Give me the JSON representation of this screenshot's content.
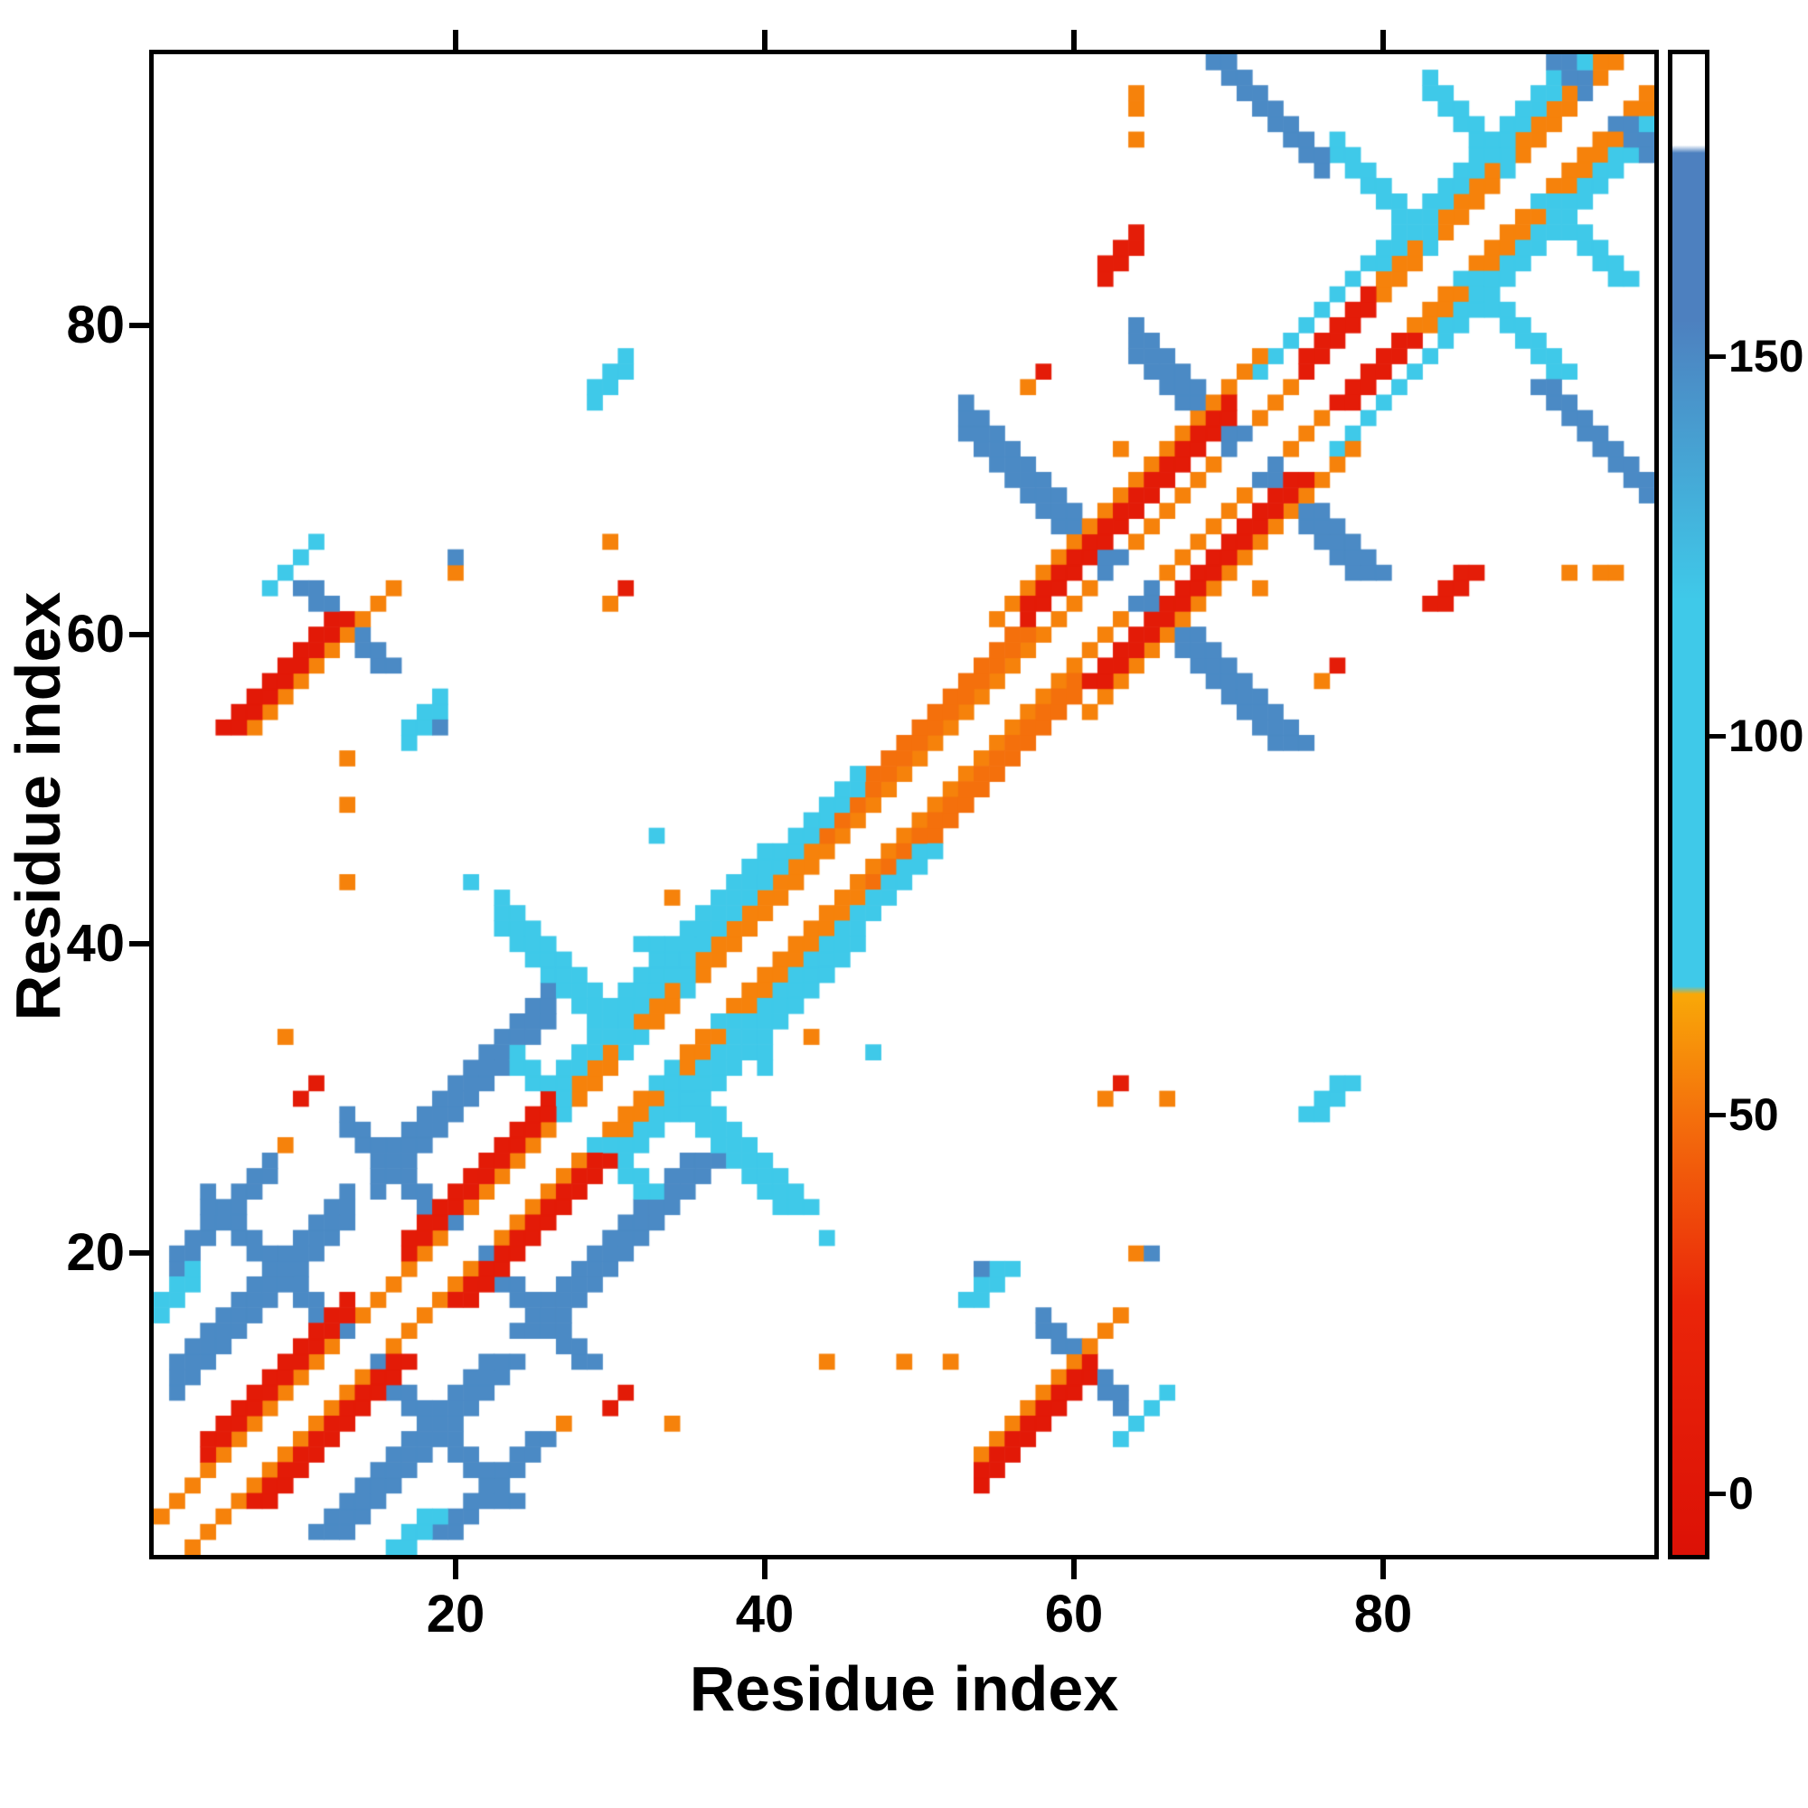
{
  "axes": {
    "xlabel": "Residue index",
    "ylabel": "Residue index",
    "xticks": [
      20,
      40,
      60,
      80
    ],
    "yticks": [
      20,
      40,
      60,
      80
    ]
  },
  "colorbar": {
    "ticks": [
      0,
      50,
      100,
      150
    ],
    "range": [
      -8,
      190
    ],
    "stops": [
      [
        -8,
        "#dc1106"
      ],
      [
        25,
        "#ea2509"
      ],
      [
        50,
        "#f4700c"
      ],
      [
        66,
        "#f9a808"
      ],
      [
        67,
        "#3fc9e9"
      ],
      [
        118,
        "#3fc9e9"
      ],
      [
        155,
        "#4d80bf"
      ],
      [
        177,
        "#4d80bf"
      ],
      [
        178,
        "#ffffff"
      ],
      [
        190,
        "#ffffff"
      ]
    ]
  },
  "chart_data": {
    "type": "heatmap",
    "title": "",
    "xlabel": "Residue index",
    "ylabel": "Residue index",
    "xlim": [
      1,
      97
    ],
    "ylim": [
      1,
      97
    ],
    "n_residues": 97,
    "symmetric": true,
    "diagonal_white": true,
    "value_colors": {
      "red": 8,
      "orange": 55,
      "cyan": 100,
      "steel_blue": 150
    },
    "features": [
      {
        "kind": "diag",
        "from": 1,
        "to": 96,
        "offset": 2,
        "width": 1,
        "value": 55
      },
      {
        "kind": "diag",
        "from": 28,
        "to": 44,
        "offset": 3,
        "width": 1,
        "value": 55
      },
      {
        "kind": "diag",
        "from": 44,
        "to": 57,
        "offset": 3,
        "width": 2,
        "value": 50
      },
      {
        "kind": "diag",
        "from": 80,
        "to": 96,
        "offset": 3,
        "width": 1,
        "value": 55
      },
      {
        "kind": "diag",
        "from": 27,
        "to": 46,
        "offset": 4,
        "width": 2,
        "value": 100
      },
      {
        "kind": "diag",
        "from": 30,
        "to": 40,
        "offset": 6,
        "width": 1,
        "value": 100
      },
      {
        "kind": "diag",
        "from": 80,
        "to": 96,
        "offset": 4,
        "width": 2,
        "value": 100
      },
      {
        "kind": "diag",
        "from": 72,
        "to": 80,
        "offset": 5,
        "width": 1,
        "value": 100
      },
      {
        "kind": "diag",
        "from": 2,
        "to": 13,
        "offset": 9,
        "width": 3,
        "value": 150
      },
      {
        "kind": "diag",
        "from": 15,
        "to": 26,
        "offset": 9,
        "width": 3,
        "value": 150
      },
      {
        "kind": "diag",
        "from": 2,
        "to": 8,
        "offset": 17,
        "width": 2,
        "value": 150
      },
      {
        "kind": "anti",
        "sum": 27,
        "from": 4,
        "to": 23,
        "width": 2,
        "value": 150
      },
      {
        "kind": "anti",
        "sum": 41,
        "from": 13,
        "to": 28,
        "width": 2,
        "value": 150
      },
      {
        "kind": "anti",
        "sum": 64,
        "from": 23,
        "to": 41,
        "width": 3,
        "value": 100
      },
      {
        "kind": "anti",
        "sum": 56,
        "from": 24,
        "to": 31,
        "width": 2,
        "value": 100
      },
      {
        "kind": "anti",
        "sum": 72,
        "from": 33,
        "to": 40,
        "width": 2,
        "value": 100
      },
      {
        "kind": "anti",
        "sum": 126,
        "from": 53,
        "to": 73,
        "width": 3,
        "value": 150
      },
      {
        "kind": "anti",
        "sum": 142,
        "from": 64,
        "to": 78,
        "width": 3,
        "value": 150
      },
      {
        "kind": "anti",
        "sum": 168,
        "from": 77,
        "to": 91,
        "width": 2,
        "value": 100
      },
      {
        "kind": "anti",
        "sum": 178,
        "from": 83,
        "to": 95,
        "width": 2,
        "value": 100
      },
      {
        "kind": "anti",
        "sum": 188,
        "from": 91,
        "to": 97,
        "width": 2,
        "value": 150
      },
      {
        "kind": "anti",
        "sum": 166,
        "from": 69,
        "to": 76,
        "width": 2,
        "value": 150
      },
      {
        "kind": "anti",
        "sum": 73,
        "from": 58,
        "to": 63,
        "width": 2,
        "value": 150
      },
      {
        "kind": "diag",
        "from": 63,
        "to": 66,
        "offset": -55,
        "width": 1,
        "value": 100
      },
      {
        "kind": "diag",
        "from": 17,
        "to": 19,
        "offset": 36,
        "width": 2,
        "value": 100
      },
      {
        "kind": "diag",
        "from": 29,
        "to": 31,
        "offset": 46,
        "width": 2,
        "value": 100
      },
      {
        "kind": "diag",
        "from": 1,
        "to": 3,
        "offset": 15,
        "width": 2,
        "value": 100
      },
      {
        "kind": "diag",
        "from": 55,
        "to": 72,
        "offset": 6,
        "width": 1,
        "value": 55
      },
      {
        "kind": "diag",
        "from": 54,
        "to": 63,
        "offset": -47,
        "width": 1,
        "value": 55
      },
      {
        "kind": "diag",
        "from": 4,
        "to": 13,
        "offset": 3,
        "width": 2,
        "value": 8
      },
      {
        "kind": "diag",
        "from": 17,
        "to": 26,
        "offset": 3,
        "width": 2,
        "value": 8
      },
      {
        "kind": "diag",
        "from": 57,
        "to": 70,
        "offset": 4,
        "width": 2,
        "value": 8
      },
      {
        "kind": "diag",
        "from": 75,
        "to": 79,
        "offset": 2,
        "width": 2,
        "value": 10
      },
      {
        "kind": "diag",
        "from": 54,
        "to": 61,
        "offset": -49,
        "width": 2,
        "value": 5
      },
      {
        "kind": "diag",
        "from": 62,
        "to": 64,
        "offset": 21,
        "width": 2,
        "value": 12
      }
    ],
    "points": [
      [
        11,
        31,
        8
      ],
      [
        10,
        30,
        8
      ],
      [
        20,
        64,
        55
      ],
      [
        13,
        44,
        55
      ],
      [
        34,
        43,
        55
      ],
      [
        27,
        9,
        55
      ],
      [
        34,
        9,
        55
      ],
      [
        49,
        13,
        55
      ],
      [
        52,
        13,
        55
      ],
      [
        54,
        19,
        150
      ],
      [
        65,
        20,
        150
      ],
      [
        47,
        33,
        100
      ],
      [
        64,
        95,
        55
      ],
      [
        72,
        63,
        55
      ],
      [
        77,
        58,
        10
      ],
      [
        76,
        57,
        55
      ],
      [
        92,
        64,
        55
      ],
      [
        94,
        64,
        55
      ],
      [
        62,
        30,
        55
      ],
      [
        63,
        31,
        12
      ],
      [
        44,
        21,
        100
      ],
      [
        30,
        66,
        55
      ]
    ]
  }
}
